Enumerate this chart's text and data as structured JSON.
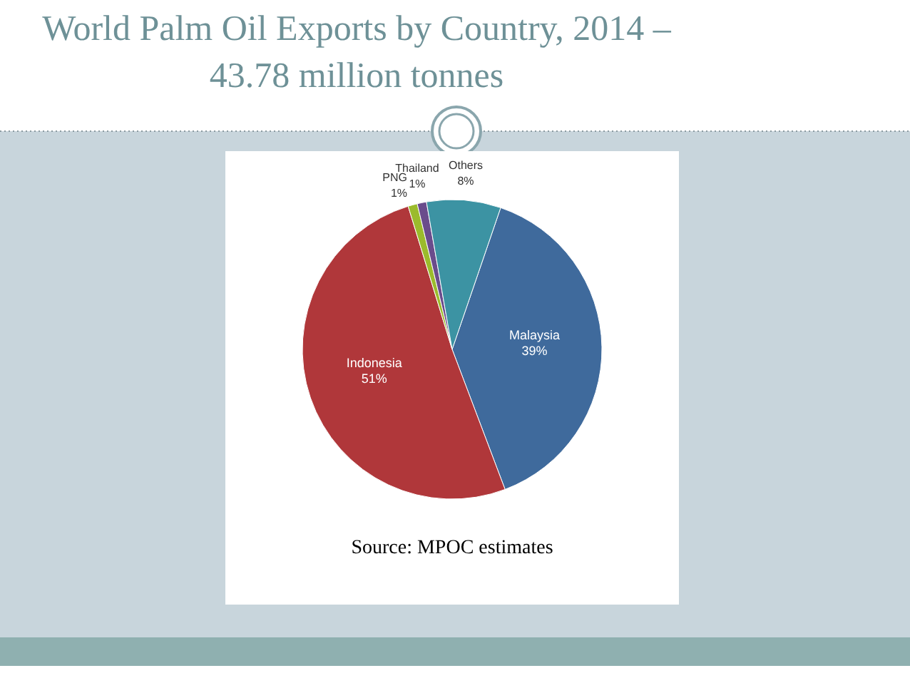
{
  "chart_data": {
    "type": "pie",
    "title": "World Palm Oil Exports by Country, 2014 – 43.78 million tonnes",
    "categories": [
      "Malaysia",
      "Indonesia",
      "PNG",
      "Thailand",
      "Others"
    ],
    "values": [
      39,
      51,
      1,
      1,
      8
    ],
    "value_labels": [
      "39%",
      "51%",
      "1%",
      "1%",
      "8%"
    ],
    "colors": [
      "#3f6a9c",
      "#b0373a",
      "#9bbb2c",
      "#6a4c8c",
      "#3c93a3"
    ],
    "annotations": [
      "Source: MPOC estimates"
    ]
  }
}
